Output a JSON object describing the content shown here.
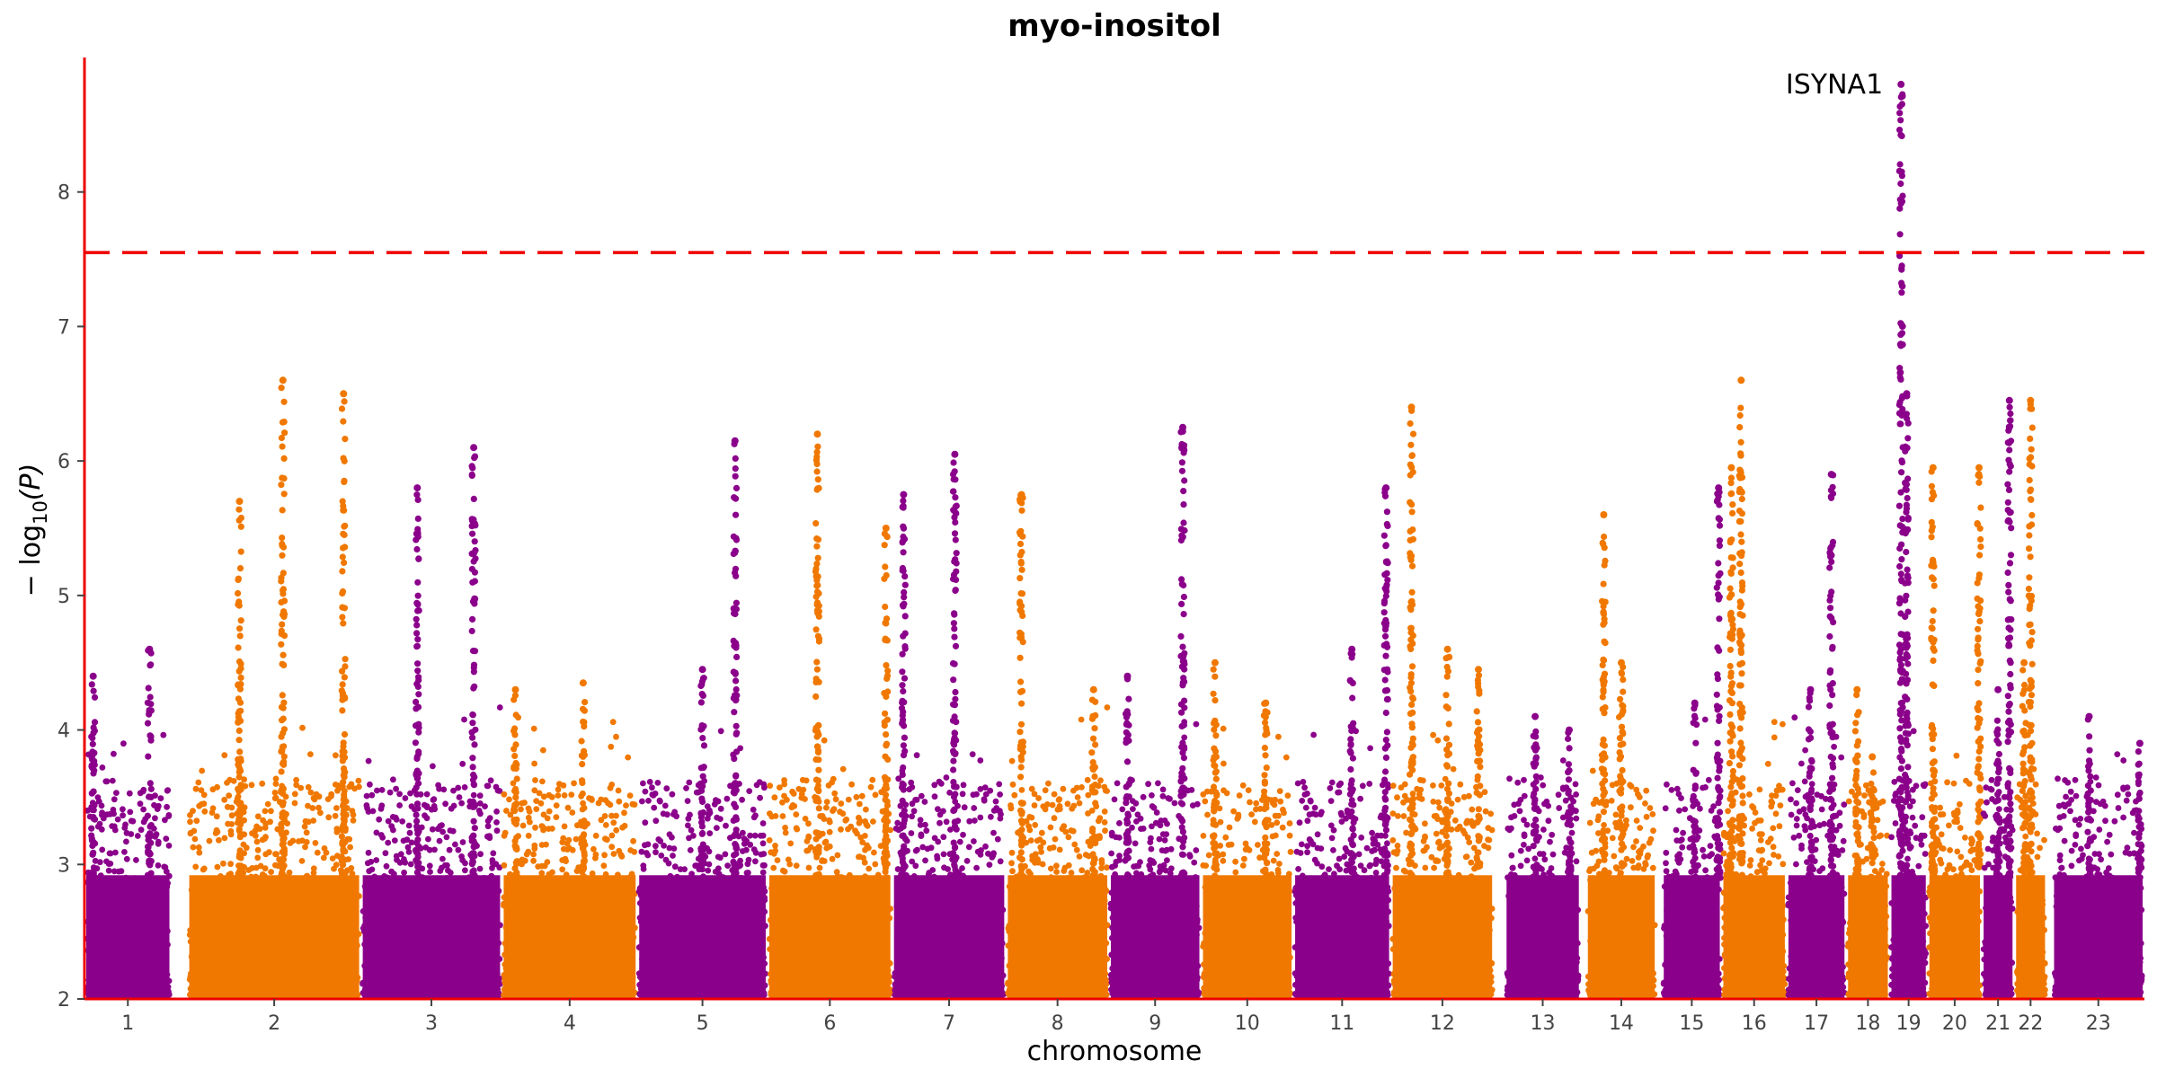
{
  "chart_data": {
    "type": "scatter",
    "title": "myo-inositol",
    "xlabel": "chromosome",
    "ylabel": "−log10(P)",
    "ylabel_main": "− log",
    "ylabel_sub": "10",
    "ylabel_tail": "(P)",
    "ylim": [
      2,
      9
    ],
    "yticks": [
      2,
      3,
      4,
      5,
      6,
      7,
      8
    ],
    "threshold": 7.55,
    "grid": false,
    "colors": {
      "odd": "#8b008b",
      "even": "#f07800",
      "axis": "#ee0000",
      "threshold": "#ee0000"
    },
    "chromosomes": [
      {
        "label": "1",
        "start": 0,
        "end": 16,
        "peaks": [
          [
            4.6,
            0.75
          ],
          [
            4.4,
            0.1
          ]
        ]
      },
      {
        "label": "2",
        "start": 19,
        "end": 51,
        "peaks": [
          [
            6.6,
            0.55
          ],
          [
            6.5,
            0.9
          ],
          [
            5.7,
            0.3
          ]
        ]
      },
      {
        "label": "3",
        "start": 51,
        "end": 77,
        "peaks": [
          [
            6.1,
            0.8
          ],
          [
            5.8,
            0.4
          ]
        ]
      },
      {
        "label": "4",
        "start": 77,
        "end": 102,
        "peaks": [
          [
            4.35,
            0.6
          ],
          [
            4.3,
            0.1
          ]
        ]
      },
      {
        "label": "5",
        "start": 102,
        "end": 126,
        "peaks": [
          [
            6.15,
            0.75
          ],
          [
            4.45,
            0.5
          ]
        ]
      },
      {
        "label": "6",
        "start": 126,
        "end": 149,
        "peaks": [
          [
            6.2,
            0.4
          ],
          [
            5.5,
            0.95
          ]
        ]
      },
      {
        "label": "7",
        "start": 149,
        "end": 170,
        "peaks": [
          [
            6.05,
            0.55
          ],
          [
            5.75,
            0.1
          ]
        ]
      },
      {
        "label": "8",
        "start": 170,
        "end": 189,
        "peaks": [
          [
            5.75,
            0.15
          ],
          [
            4.3,
            0.85
          ]
        ]
      },
      {
        "label": "9",
        "start": 189,
        "end": 206,
        "peaks": [
          [
            6.25,
            0.8
          ],
          [
            4.4,
            0.2
          ]
        ]
      },
      {
        "label": "10",
        "start": 206,
        "end": 223,
        "peaks": [
          [
            4.5,
            0.15
          ],
          [
            4.2,
            0.7
          ]
        ]
      },
      {
        "label": "11",
        "start": 223,
        "end": 241,
        "peaks": [
          [
            5.8,
            0.95
          ],
          [
            4.6,
            0.6
          ]
        ]
      },
      {
        "label": "12",
        "start": 241,
        "end": 260,
        "peaks": [
          [
            6.4,
            0.2
          ],
          [
            4.6,
            0.55
          ],
          [
            4.45,
            0.85
          ]
        ]
      },
      {
        "label": "13",
        "start": 262,
        "end": 276,
        "peaks": [
          [
            4.1,
            0.4
          ],
          [
            4.0,
            0.85
          ]
        ]
      },
      {
        "label": "14",
        "start": 277,
        "end": 290,
        "peaks": [
          [
            5.6,
            0.25
          ],
          [
            4.5,
            0.5
          ]
        ]
      },
      {
        "label": "15",
        "start": 291,
        "end": 302,
        "peaks": [
          [
            5.8,
            0.95
          ],
          [
            4.2,
            0.55
          ]
        ]
      },
      {
        "label": "16",
        "start": 302,
        "end": 314,
        "peaks": [
          [
            6.6,
            0.3
          ],
          [
            5.95,
            0.15
          ]
        ]
      },
      {
        "label": "17",
        "start": 314,
        "end": 325,
        "peaks": [
          [
            5.9,
            0.75
          ],
          [
            4.3,
            0.4
          ]
        ]
      },
      {
        "label": "18",
        "start": 325,
        "end": 333,
        "peaks": [
          [
            4.3,
            0.25
          ],
          [
            3.8,
            0.6
          ]
        ]
      },
      {
        "label": "19",
        "start": 333,
        "end": 340,
        "peaks": [
          [
            8.8,
            0.3
          ],
          [
            6.5,
            0.45
          ]
        ]
      },
      {
        "label": "20",
        "start": 340,
        "end": 350,
        "peaks": [
          [
            5.95,
            0.95
          ],
          [
            5.95,
            0.1
          ]
        ]
      },
      {
        "label": "21",
        "start": 350,
        "end": 356,
        "peaks": [
          [
            6.45,
            0.85
          ],
          [
            4.3,
            0.5
          ]
        ]
      },
      {
        "label": "22",
        "start": 356,
        "end": 362,
        "peaks": [
          [
            6.45,
            0.5
          ],
          [
            4.5,
            0.3
          ]
        ]
      },
      {
        "label": "23",
        "start": 363,
        "end": 380,
        "peaks": [
          [
            4.1,
            0.4
          ],
          [
            3.9,
            0.95
          ]
        ]
      }
    ],
    "annotations": [
      {
        "text": "ISYNA1",
        "chromosome": "19",
        "y": 8.8
      }
    ]
  }
}
